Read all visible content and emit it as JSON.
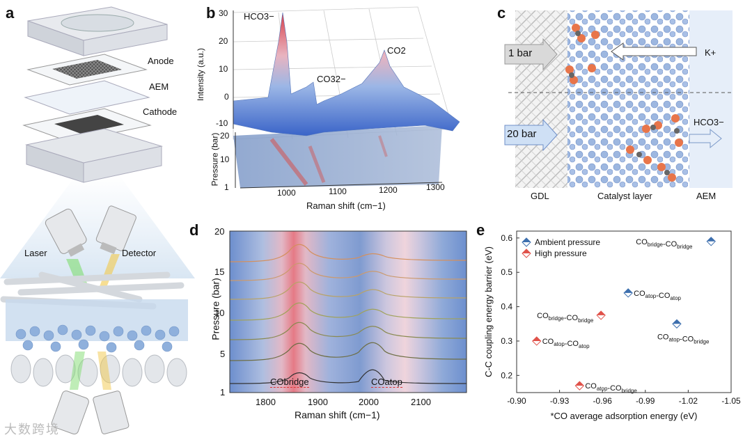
{
  "panels": {
    "a": {
      "letter": "a",
      "labels": {
        "anode": "Anode",
        "aem": "AEM",
        "cathode": "Cathode",
        "laser": "Laser",
        "detector": "Detector"
      }
    },
    "b": {
      "letter": "b",
      "peaks": {
        "hco3": "HCO3−",
        "co3": "CO32−",
        "co2": "CO2"
      },
      "ylabel_top": "Intensity (a.u.)",
      "ylabel_bottom": "Pressure (bar)",
      "xlabel": "Raman shift (cm−1)",
      "yticks_intensity": [
        "30",
        "20",
        "10",
        "0",
        "-10"
      ],
      "yticks_pressure": [
        "20",
        "10",
        "1"
      ],
      "xticks": [
        "1000",
        "1100",
        "1200",
        "1300"
      ]
    },
    "c": {
      "letter": "c",
      "labels": {
        "one_bar": "1 bar",
        "twenty_bar": "20 bar",
        "kplus": "K+",
        "hco3": "HCO3−",
        "gdl": "GDL",
        "catalyst": "Catalyst layer",
        "aem": "AEM"
      }
    },
    "d": {
      "letter": "d",
      "ylabel": "Pressure (bar)",
      "xlabel": "Raman shift (cm−1)",
      "yticks": [
        "20",
        "15",
        "10",
        "5",
        "1"
      ],
      "xticks": [
        "1800",
        "1900",
        "2000",
        "2100"
      ],
      "band_labels": {
        "bridge": "CObridge",
        "atop": "COatop"
      }
    },
    "e": {
      "letter": "e"
    }
  },
  "chart_data": {
    "type": "scatter",
    "xlabel": "*CO average adsorption energy (eV)",
    "ylabel": "C-C coupling energy barrier (eV)",
    "xlim": [
      -0.9,
      -1.05
    ],
    "ylim": [
      0.15,
      0.62
    ],
    "xticks": [
      "-0.90",
      "-0.93",
      "-0.96",
      "-0.99",
      "-1.02",
      "-1.05"
    ],
    "yticks": [
      "0.6",
      "0.5",
      "0.4",
      "0.3",
      "0.2"
    ],
    "legend": "top-left",
    "series": [
      {
        "name": "Ambient pressure",
        "color": "#3d6fae",
        "points": [
          {
            "x": -1.036,
            "y": 0.59,
            "label": "CObridge-CObridge"
          },
          {
            "x": -0.978,
            "y": 0.44,
            "label": "COatop-COatop"
          },
          {
            "x": -1.012,
            "y": 0.35,
            "label": "COatop-CObridge"
          }
        ]
      },
      {
        "name": "High pressure",
        "color": "#e0524a",
        "points": [
          {
            "x": -0.959,
            "y": 0.375,
            "label": "CObridge-CObridge"
          },
          {
            "x": -0.914,
            "y": 0.3,
            "label": "COatop-COatop"
          },
          {
            "x": -0.944,
            "y": 0.17,
            "label": "COatop-CObridge"
          }
        ]
      }
    ]
  },
  "watermark": "大数跨境"
}
